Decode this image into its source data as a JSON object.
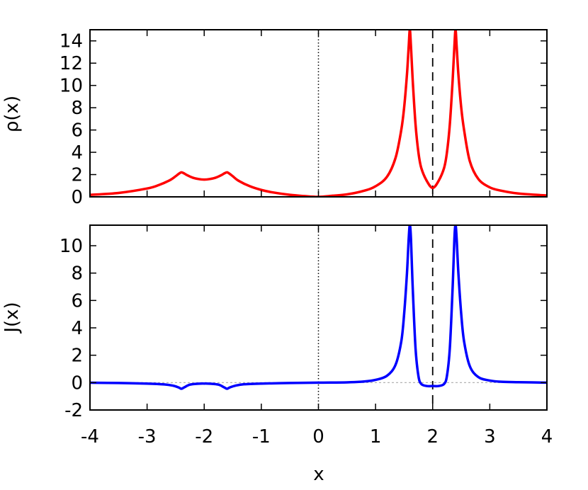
{
  "chart_data": [
    {
      "type": "line",
      "ylabel": "ρ(x)",
      "xlabel": "",
      "xlim": [
        -4,
        4
      ],
      "ylim": [
        0,
        15
      ],
      "xticks": [
        -4,
        -3,
        -2,
        -1,
        0,
        1,
        2,
        3,
        4
      ],
      "yticks": [
        0,
        2,
        4,
        6,
        8,
        10,
        12,
        14
      ],
      "yticklabels": [
        "0",
        "2",
        "4",
        "6",
        "8",
        "10",
        "12",
        "14"
      ],
      "series": [
        {
          "color": "#ff0000",
          "x": [
            -4.0,
            -3.5,
            -3.0,
            -2.8,
            -2.6,
            -2.5,
            -2.45,
            -2.4,
            -2.35,
            -2.3,
            -2.2,
            -2.1,
            -2.0,
            -1.9,
            -1.8,
            -1.7,
            -1.65,
            -1.6,
            -1.55,
            -1.5,
            -1.4,
            -1.2,
            -1.0,
            -0.8,
            -0.5,
            -0.25,
            0.0,
            0.25,
            0.5,
            0.8,
            1.0,
            1.2,
            1.35,
            1.45,
            1.5,
            1.55,
            1.58,
            1.6,
            1.62,
            1.65,
            1.7,
            1.75,
            1.8,
            1.9,
            2.0,
            2.1,
            2.2,
            2.25,
            2.3,
            2.35,
            2.38,
            2.4,
            2.42,
            2.45,
            2.5,
            2.55,
            2.65,
            2.8,
            3.0,
            3.2,
            3.5,
            4.0
          ],
          "y": [
            0.18,
            0.35,
            0.75,
            1.05,
            1.5,
            1.85,
            2.05,
            2.2,
            2.1,
            1.95,
            1.72,
            1.6,
            1.55,
            1.6,
            1.72,
            1.95,
            2.1,
            2.2,
            2.05,
            1.85,
            1.45,
            0.95,
            0.62,
            0.4,
            0.18,
            0.07,
            0.0,
            0.1,
            0.22,
            0.55,
            0.95,
            1.8,
            3.5,
            6.0,
            8.0,
            11.0,
            13.5,
            15.0,
            13.5,
            10.5,
            6.5,
            4.0,
            2.6,
            1.4,
            0.8,
            1.4,
            2.6,
            4.0,
            6.5,
            10.5,
            13.5,
            15.0,
            13.5,
            11.0,
            8.0,
            6.0,
            3.2,
            1.6,
            0.85,
            0.55,
            0.3,
            0.12
          ]
        }
      ],
      "reference_lines": [
        {
          "x": 0,
          "style": "dotted",
          "color": "#000000"
        },
        {
          "x": 2,
          "style": "dashed",
          "color": "#000000"
        }
      ]
    },
    {
      "type": "line",
      "ylabel": "J(x)",
      "xlabel": "x",
      "xlim": [
        -4,
        4
      ],
      "ylim": [
        -2,
        11.5
      ],
      "xticks": [
        -4,
        -3,
        -2,
        -1,
        0,
        1,
        2,
        3,
        4
      ],
      "xticklabels": [
        "-4",
        "-3",
        "-2",
        "-1",
        "0",
        "1",
        "2",
        "3",
        "4"
      ],
      "yticks": [
        -2,
        0,
        2,
        4,
        6,
        8,
        10
      ],
      "yticklabels": [
        "-2",
        "0",
        "2",
        "4",
        "6",
        "8",
        "10"
      ],
      "series": [
        {
          "color": "#0000ff",
          "x": [
            -4.0,
            -3.5,
            -3.0,
            -2.7,
            -2.55,
            -2.45,
            -2.4,
            -2.35,
            -2.25,
            -2.1,
            -2.0,
            -1.9,
            -1.75,
            -1.65,
            -1.6,
            -1.55,
            -1.45,
            -1.3,
            -1.0,
            -0.5,
            0.0,
            0.5,
            0.8,
            1.0,
            1.2,
            1.35,
            1.45,
            1.5,
            1.55,
            1.58,
            1.6,
            1.62,
            1.65,
            1.7,
            1.75,
            1.8,
            1.9,
            2.0,
            2.1,
            2.2,
            2.25,
            2.3,
            2.35,
            2.38,
            2.4,
            2.42,
            2.45,
            2.5,
            2.55,
            2.65,
            2.8,
            3.0,
            3.2,
            3.5,
            4.0
          ],
          "y": [
            -0.01,
            -0.03,
            -0.07,
            -0.13,
            -0.22,
            -0.35,
            -0.45,
            -0.35,
            -0.15,
            -0.08,
            -0.07,
            -0.08,
            -0.15,
            -0.35,
            -0.45,
            -0.35,
            -0.22,
            -0.12,
            -0.07,
            -0.03,
            0.0,
            0.02,
            0.08,
            0.2,
            0.5,
            1.3,
            3.0,
            5.0,
            8.0,
            10.5,
            11.5,
            10.5,
            7.0,
            2.5,
            0.5,
            -0.1,
            -0.25,
            -0.25,
            -0.25,
            -0.1,
            0.5,
            2.5,
            7.0,
            10.5,
            11.5,
            10.5,
            8.0,
            5.0,
            3.0,
            1.2,
            0.4,
            0.15,
            0.06,
            0.03,
            0.0
          ]
        }
      ],
      "reference_lines": [
        {
          "x": 0,
          "style": "dotted",
          "color": "#000000"
        },
        {
          "x": 2,
          "style": "dashed",
          "color": "#000000"
        },
        {
          "y": 0,
          "style": "dashed",
          "color": "#aaaaaa"
        }
      ]
    }
  ]
}
